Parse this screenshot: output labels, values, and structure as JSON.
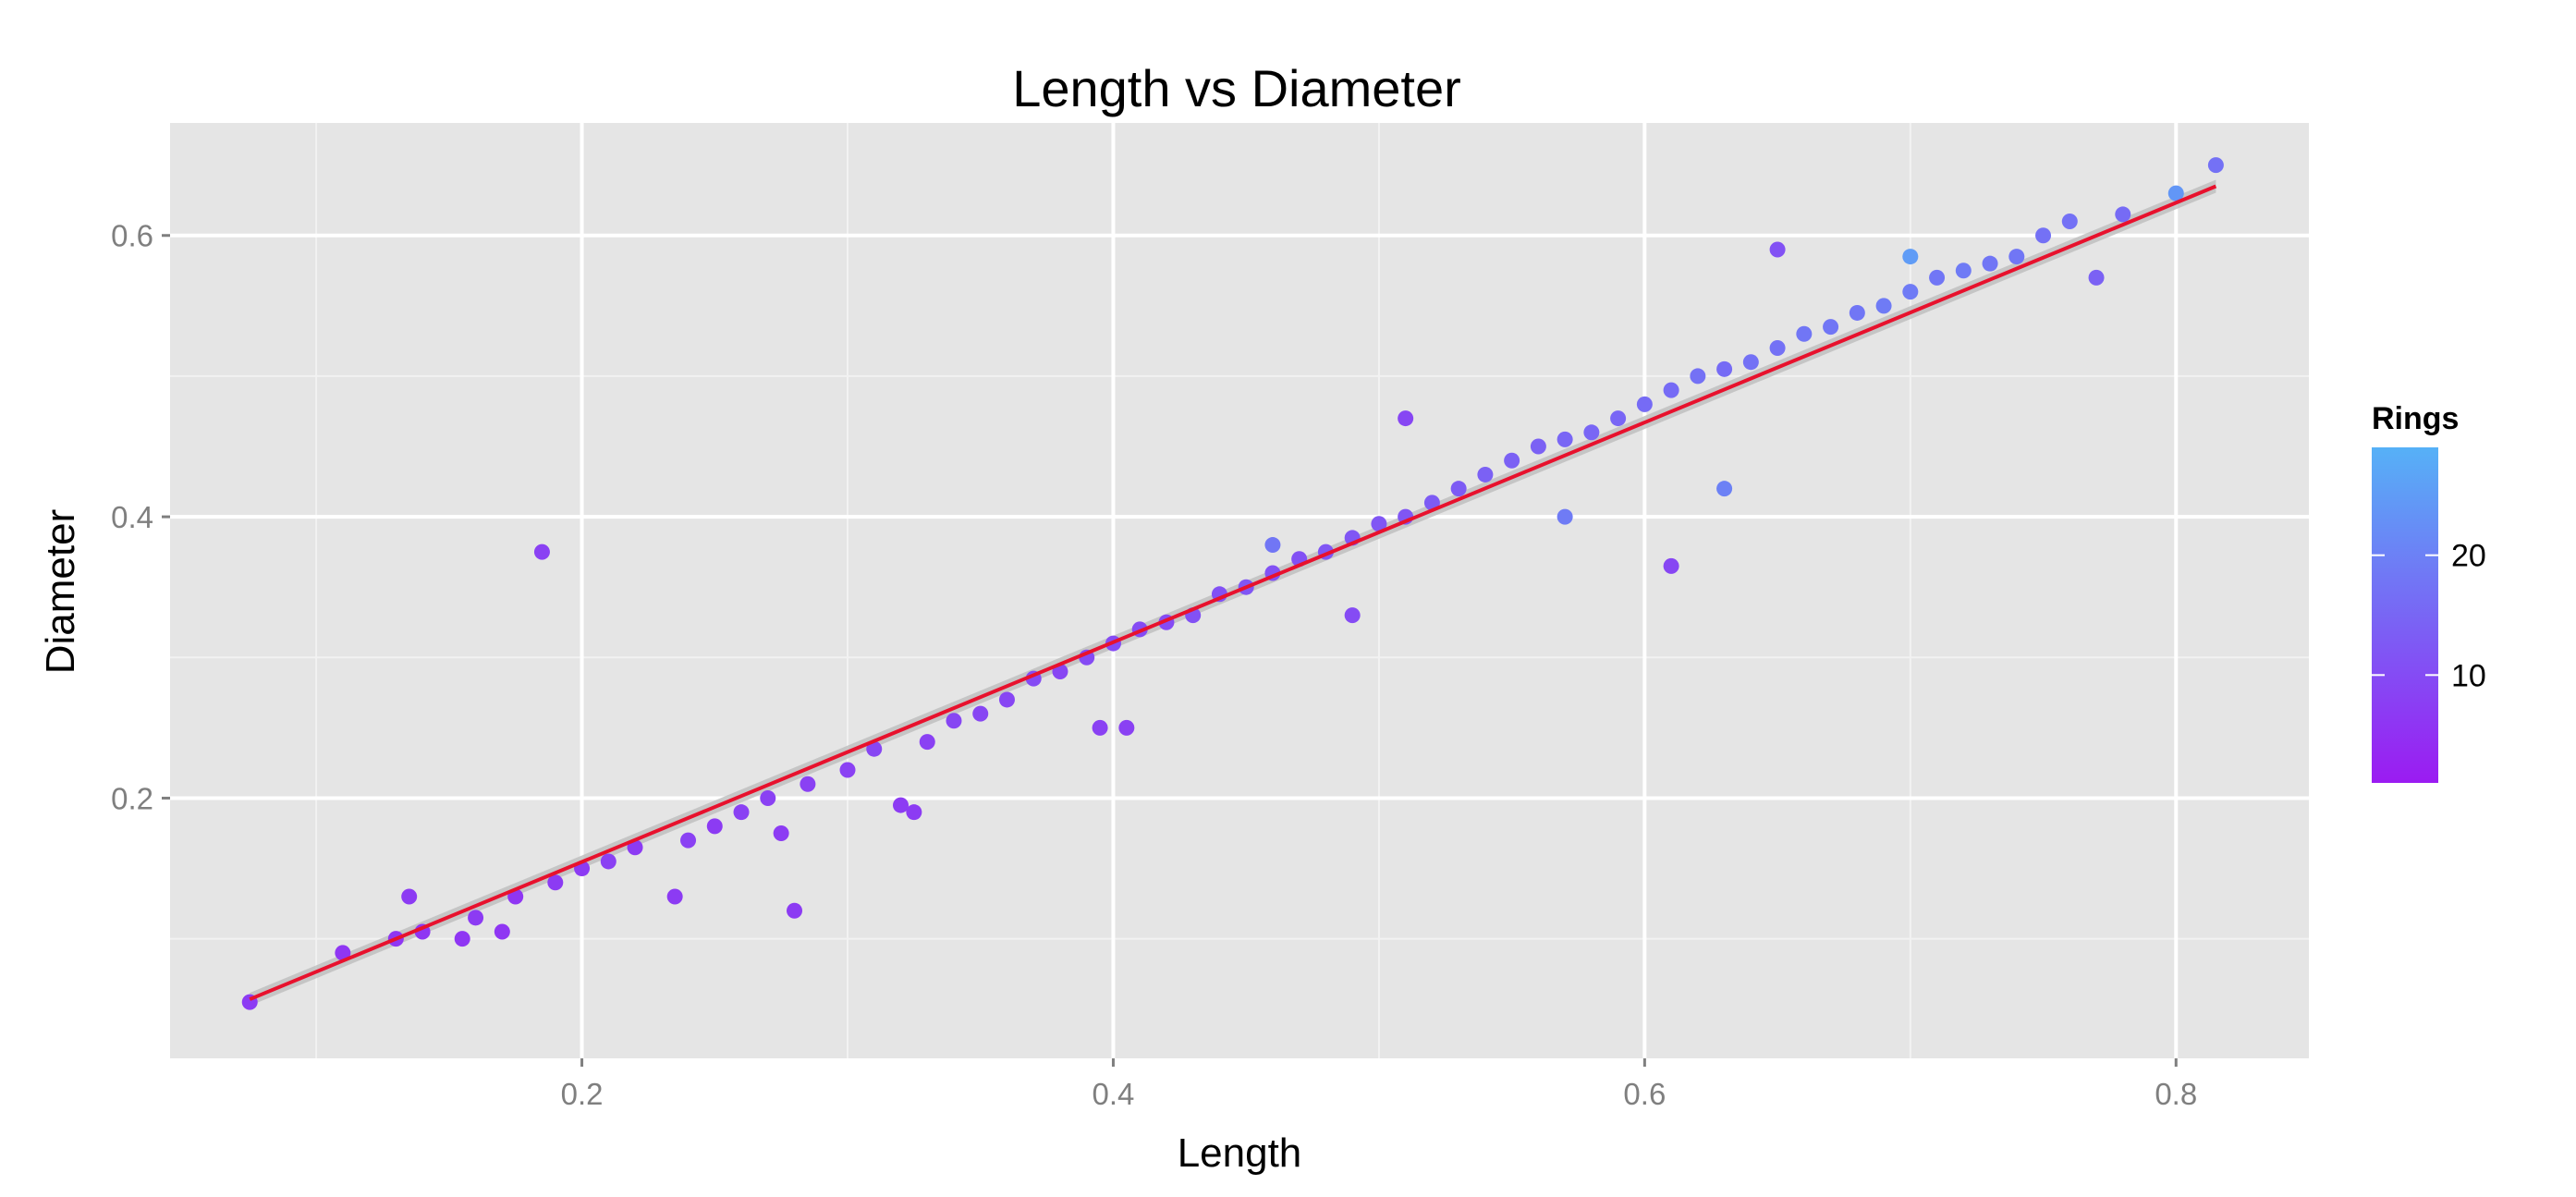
{
  "chart_data": {
    "type": "scatter",
    "title": "Length vs Diameter",
    "xlabel": "Length",
    "ylabel": "Diameter",
    "xlim": [
      0.045,
      0.85
    ],
    "ylim": [
      0.015,
      0.68
    ],
    "x_ticks": [
      0.2,
      0.4,
      0.6,
      0.8
    ],
    "x_tick_labels": [
      "0.2",
      "0.4",
      "0.6",
      "0.8"
    ],
    "x_minor_ticks": [
      0.1,
      0.3,
      0.5,
      0.7
    ],
    "y_ticks": [
      0.2,
      0.4,
      0.6
    ],
    "y_tick_labels": [
      "0.2",
      "0.4",
      "0.6"
    ],
    "y_minor_ticks": [
      0.1,
      0.3,
      0.5
    ],
    "grid": true,
    "panel_background": "#e5e5e5",
    "color_scale": {
      "title": "Rings",
      "low_color": "#9b1bf2",
      "high_color": "#56b1f7",
      "min": 1,
      "max": 29,
      "breaks": [
        10,
        20
      ],
      "break_labels": [
        "10",
        "20"
      ]
    },
    "series": [
      {
        "points": [
          [
            0.075,
            0.055,
            7
          ],
          [
            0.11,
            0.09,
            6
          ],
          [
            0.13,
            0.1,
            6
          ],
          [
            0.135,
            0.13,
            7
          ],
          [
            0.14,
            0.105,
            6
          ],
          [
            0.155,
            0.1,
            6
          ],
          [
            0.16,
            0.115,
            7
          ],
          [
            0.17,
            0.105,
            6
          ],
          [
            0.175,
            0.13,
            6
          ],
          [
            0.185,
            0.375,
            8
          ],
          [
            0.19,
            0.14,
            7
          ],
          [
            0.2,
            0.15,
            7
          ],
          [
            0.21,
            0.155,
            8
          ],
          [
            0.22,
            0.165,
            7
          ],
          [
            0.235,
            0.13,
            7
          ],
          [
            0.24,
            0.17,
            8
          ],
          [
            0.25,
            0.18,
            7
          ],
          [
            0.26,
            0.19,
            8
          ],
          [
            0.27,
            0.2,
            8
          ],
          [
            0.275,
            0.175,
            7
          ],
          [
            0.28,
            0.12,
            7
          ],
          [
            0.285,
            0.21,
            8
          ],
          [
            0.3,
            0.22,
            8
          ],
          [
            0.31,
            0.235,
            9
          ],
          [
            0.32,
            0.195,
            7
          ],
          [
            0.325,
            0.19,
            7
          ],
          [
            0.33,
            0.24,
            8
          ],
          [
            0.34,
            0.255,
            9
          ],
          [
            0.35,
            0.26,
            9
          ],
          [
            0.36,
            0.27,
            9
          ],
          [
            0.37,
            0.285,
            10
          ],
          [
            0.38,
            0.29,
            9
          ],
          [
            0.39,
            0.3,
            10
          ],
          [
            0.395,
            0.25,
            8
          ],
          [
            0.4,
            0.31,
            10
          ],
          [
            0.405,
            0.25,
            8
          ],
          [
            0.41,
            0.32,
            10
          ],
          [
            0.42,
            0.325,
            10
          ],
          [
            0.43,
            0.33,
            11
          ],
          [
            0.44,
            0.345,
            11
          ],
          [
            0.45,
            0.35,
            12
          ],
          [
            0.46,
            0.38,
            18
          ],
          [
            0.46,
            0.36,
            11
          ],
          [
            0.47,
            0.37,
            11
          ],
          [
            0.48,
            0.375,
            12
          ],
          [
            0.49,
            0.33,
            10
          ],
          [
            0.49,
            0.385,
            12
          ],
          [
            0.5,
            0.395,
            12
          ],
          [
            0.51,
            0.47,
            9
          ],
          [
            0.51,
            0.4,
            12
          ],
          [
            0.52,
            0.41,
            13
          ],
          [
            0.53,
            0.42,
            13
          ],
          [
            0.54,
            0.43,
            14
          ],
          [
            0.55,
            0.44,
            14
          ],
          [
            0.56,
            0.45,
            14
          ],
          [
            0.57,
            0.4,
            19
          ],
          [
            0.57,
            0.455,
            15
          ],
          [
            0.58,
            0.46,
            15
          ],
          [
            0.59,
            0.47,
            15
          ],
          [
            0.6,
            0.48,
            16
          ],
          [
            0.61,
            0.365,
            9
          ],
          [
            0.61,
            0.49,
            16
          ],
          [
            0.62,
            0.5,
            17
          ],
          [
            0.63,
            0.42,
            20
          ],
          [
            0.63,
            0.505,
            16
          ],
          [
            0.64,
            0.51,
            17
          ],
          [
            0.65,
            0.59,
            11
          ],
          [
            0.65,
            0.52,
            17
          ],
          [
            0.66,
            0.53,
            18
          ],
          [
            0.67,
            0.535,
            18
          ],
          [
            0.68,
            0.545,
            18
          ],
          [
            0.69,
            0.55,
            19
          ],
          [
            0.7,
            0.585,
            25
          ],
          [
            0.7,
            0.56,
            19
          ],
          [
            0.71,
            0.57,
            18
          ],
          [
            0.72,
            0.575,
            19
          ],
          [
            0.73,
            0.58,
            18
          ],
          [
            0.74,
            0.585,
            18
          ],
          [
            0.75,
            0.6,
            17
          ],
          [
            0.76,
            0.61,
            17
          ],
          [
            0.77,
            0.57,
            14
          ],
          [
            0.78,
            0.615,
            16
          ],
          [
            0.8,
            0.63,
            24
          ],
          [
            0.815,
            0.65,
            17
          ]
        ]
      }
    ],
    "trend_line": {
      "color": "#e8112d",
      "band_color": "#bdbdbd",
      "x": [
        0.075,
        0.815
      ],
      "y": [
        0.057,
        0.635
      ]
    }
  }
}
